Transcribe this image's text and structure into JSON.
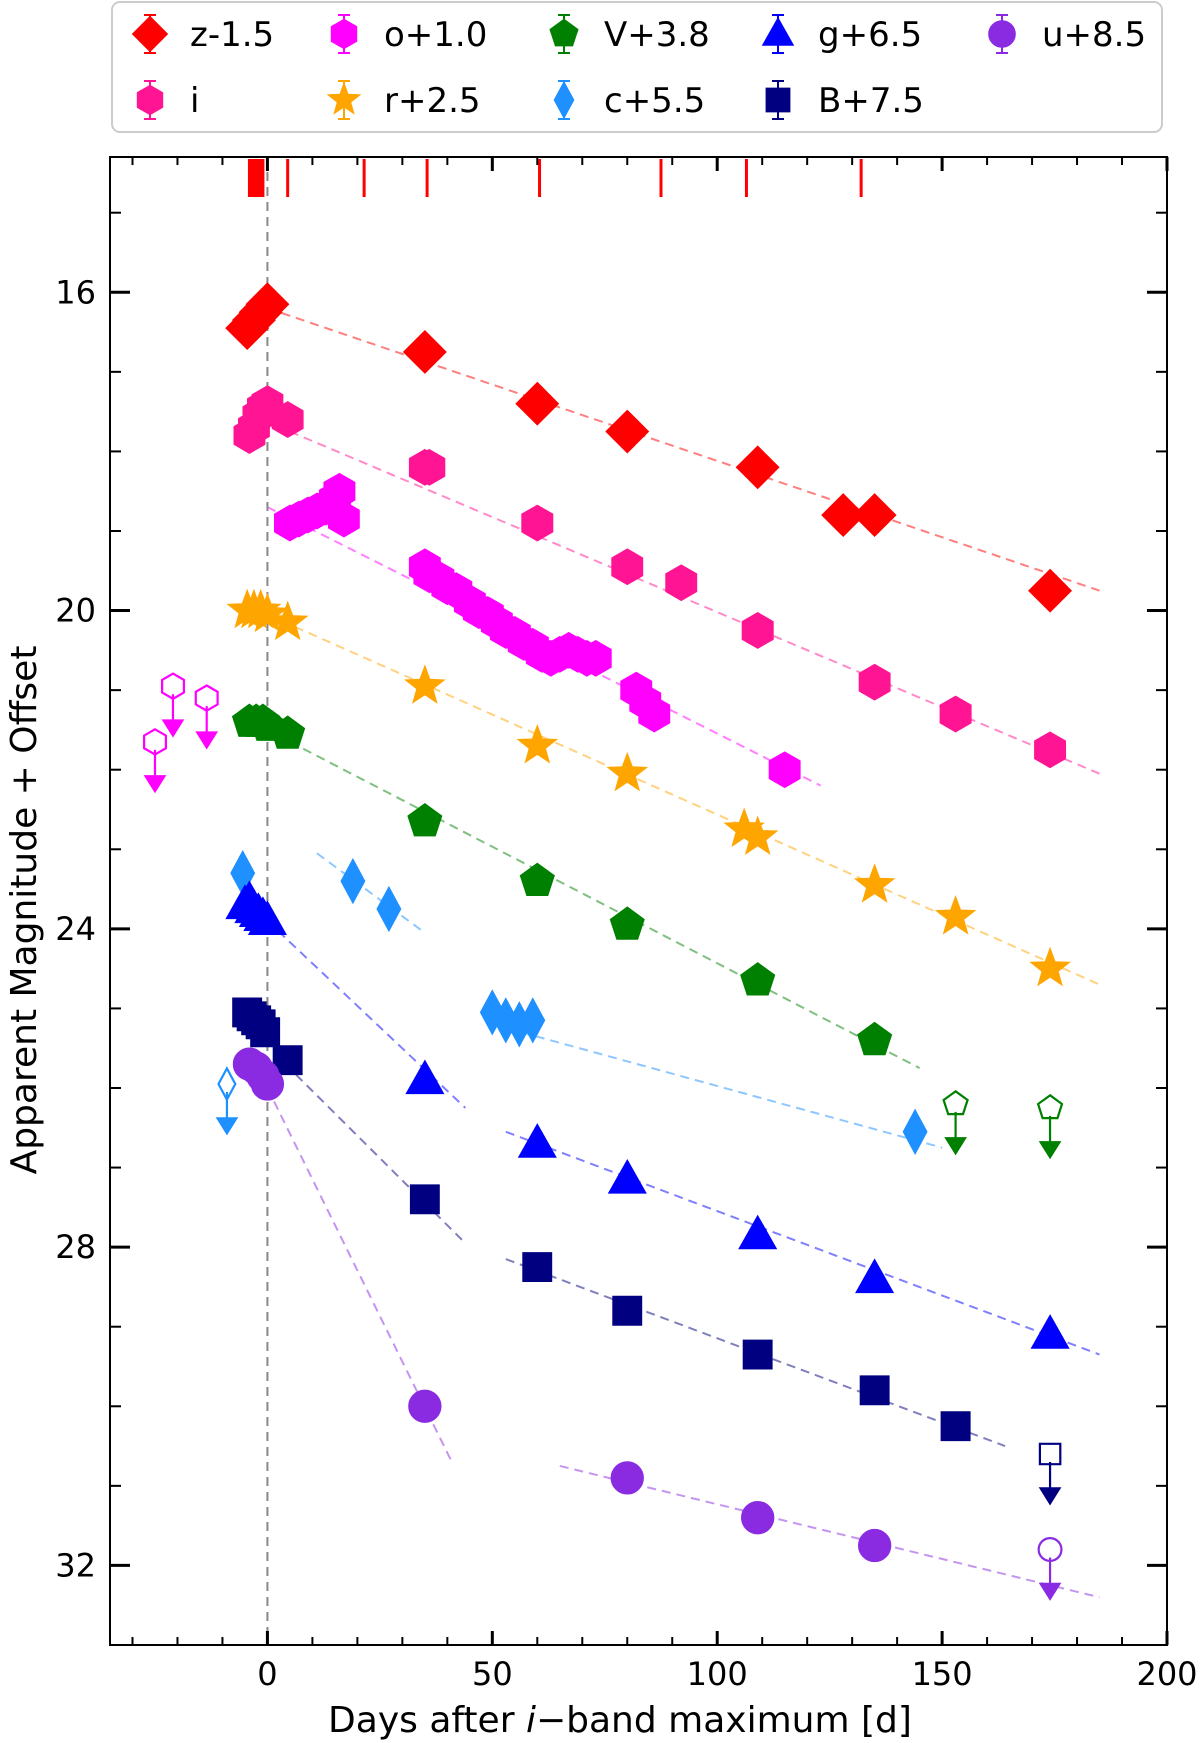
{
  "chart_data": {
    "type": "scatter",
    "title": "",
    "xlabel_parts": [
      "Days after ",
      "i",
      "−band maximum [d]"
    ],
    "ylabel": "Apparent Magnitude + Offset",
    "xlim": [
      -35,
      200
    ],
    "ylim": [
      33.0,
      14.3
    ],
    "y_inverted": true,
    "grid": false,
    "legend_position": "top",
    "xticks": [
      0,
      50,
      100,
      150,
      200
    ],
    "xtick_labels": [
      "0",
      "50",
      "100",
      "150",
      "200"
    ],
    "yticks": [
      16,
      20,
      24,
      28,
      32
    ],
    "ytick_labels": [
      "16",
      "20",
      "24",
      "28",
      "32"
    ],
    "reference_line_x": 0,
    "spectra_epochs": [
      -4,
      -3.5,
      -3,
      -2.5,
      -2,
      -1.5,
      -1,
      4.5,
      21.5,
      35.5,
      60.5,
      87.5,
      106.5,
      132
    ],
    "series": [
      {
        "name": "z-1.5",
        "marker": "diamond",
        "color": "#ff0000",
        "points": [
          [
            -4.5,
            16.45
          ],
          [
            -3,
            16.35
          ],
          [
            -1.5,
            16.25
          ],
          [
            0,
            16.15
          ],
          [
            35,
            16.75
          ],
          [
            60,
            17.4
          ],
          [
            80,
            17.75
          ],
          [
            109,
            18.2
          ],
          [
            128,
            18.8
          ],
          [
            135,
            18.8
          ],
          [
            174,
            19.75
          ]
        ],
        "fit": [
          [
            0,
            16.2
          ],
          [
            185,
            19.75
          ]
        ]
      },
      {
        "name": "i",
        "marker": "hexagon",
        "color": "#ff1493",
        "points": [
          [
            -4,
            17.8
          ],
          [
            -3,
            17.7
          ],
          [
            -2,
            17.55
          ],
          [
            -1,
            17.45
          ],
          [
            0,
            17.4
          ],
          [
            4.5,
            17.6
          ],
          [
            35,
            18.2
          ],
          [
            36,
            18.2
          ],
          [
            60,
            18.9
          ],
          [
            80,
            19.45
          ],
          [
            92,
            19.65
          ],
          [
            109,
            20.25
          ],
          [
            135,
            20.9
          ],
          [
            153,
            21.3
          ],
          [
            174,
            21.75
          ]
        ],
        "fit": [
          [
            5,
            17.75
          ],
          [
            185,
            22.05
          ]
        ]
      },
      {
        "name": "o+1.0",
        "marker": "hexagon",
        "color": "#ff00ff",
        "points": [
          [
            5,
            18.9
          ],
          [
            7,
            18.85
          ],
          [
            9,
            18.8
          ],
          [
            11,
            18.75
          ],
          [
            13,
            18.7
          ],
          [
            15,
            18.6
          ],
          [
            16,
            18.5
          ],
          [
            17,
            18.85
          ],
          [
            35,
            19.45
          ],
          [
            36,
            19.55
          ],
          [
            38,
            19.6
          ],
          [
            40,
            19.7
          ],
          [
            42,
            19.75
          ],
          [
            45,
            19.9
          ],
          [
            47,
            20.0
          ],
          [
            49,
            20.05
          ],
          [
            51,
            20.15
          ],
          [
            53,
            20.25
          ],
          [
            55,
            20.3
          ],
          [
            57,
            20.4
          ],
          [
            59,
            20.45
          ],
          [
            61,
            20.55
          ],
          [
            63,
            20.6
          ],
          [
            65,
            20.55
          ],
          [
            67,
            20.5
          ],
          [
            69,
            20.55
          ],
          [
            71,
            20.6
          ],
          [
            73,
            20.6
          ],
          [
            82,
            21.0
          ],
          [
            84,
            21.15
          ],
          [
            86,
            21.3
          ],
          [
            115,
            22.0
          ]
        ],
        "fit": [
          [
            0,
            18.7
          ],
          [
            123,
            22.2
          ]
        ]
      },
      {
        "name": "r+2.5",
        "marker": "star",
        "color": "#ffa500",
        "points": [
          [
            -4.5,
            20.0
          ],
          [
            -3,
            20.0
          ],
          [
            -1.5,
            20.0
          ],
          [
            0,
            20.05
          ],
          [
            4.5,
            20.15
          ],
          [
            35,
            20.95
          ],
          [
            60,
            21.7
          ],
          [
            80,
            22.05
          ],
          [
            106,
            22.75
          ],
          [
            109,
            22.85
          ],
          [
            135,
            23.45
          ],
          [
            153,
            23.85
          ],
          [
            174,
            24.5
          ]
        ],
        "fit": [
          [
            0,
            20.05
          ],
          [
            185,
            24.7
          ]
        ]
      },
      {
        "name": "V+3.8",
        "marker": "pentagon",
        "color": "#008000",
        "points": [
          [
            -4,
            21.4
          ],
          [
            -2.5,
            21.4
          ],
          [
            -1,
            21.4
          ],
          [
            0,
            21.45
          ],
          [
            4.5,
            21.55
          ],
          [
            35,
            22.65
          ],
          [
            60,
            23.4
          ],
          [
            80,
            23.95
          ],
          [
            109,
            24.65
          ],
          [
            135,
            25.4
          ]
        ],
        "fit": [
          [
            5,
            21.65
          ],
          [
            145,
            25.75
          ]
        ]
      },
      {
        "name": "c+5.5",
        "marker": "thin_diamond",
        "color": "#1e90ff",
        "points": [
          [
            -5.5,
            23.3
          ],
          [
            19,
            23.4
          ],
          [
            27,
            23.75
          ],
          [
            50,
            25.05
          ],
          [
            53,
            25.15
          ],
          [
            56,
            25.2
          ],
          [
            59,
            25.15
          ],
          [
            144,
            26.55
          ]
        ],
        "fit_segments": [
          [
            [
              11,
              23.05
            ],
            [
              35,
              24.05
            ]
          ],
          [
            [
              50,
              25.2
            ],
            [
              150,
              26.75
            ]
          ]
        ]
      },
      {
        "name": "g+6.5",
        "marker": "triangle",
        "color": "#0000ff",
        "points": [
          [
            -5,
            23.7
          ],
          [
            -4,
            23.65
          ],
          [
            -3,
            23.75
          ],
          [
            -2,
            23.8
          ],
          [
            -1,
            23.85
          ],
          [
            0,
            23.9
          ],
          [
            35,
            25.9
          ],
          [
            60,
            26.7
          ],
          [
            80,
            27.15
          ],
          [
            109,
            27.85
          ],
          [
            135,
            28.4
          ],
          [
            174,
            29.1
          ]
        ],
        "fit_segments": [
          [
            [
              0,
              23.9
            ],
            [
              44,
              26.25
            ]
          ],
          [
            [
              53,
              26.55
            ],
            [
              185,
              29.35
            ]
          ]
        ]
      },
      {
        "name": "B+7.5",
        "marker": "square",
        "color": "#000080",
        "points": [
          [
            -4.5,
            25.05
          ],
          [
            -3.5,
            25.1
          ],
          [
            -2.5,
            25.15
          ],
          [
            -1.5,
            25.2
          ],
          [
            -0.5,
            25.3
          ],
          [
            4.5,
            25.65
          ],
          [
            35,
            27.4
          ],
          [
            60,
            28.25
          ],
          [
            80,
            28.8
          ],
          [
            109,
            29.35
          ],
          [
            135,
            29.8
          ],
          [
            153,
            30.25
          ]
        ],
        "fit_segments": [
          [
            [
              4,
              25.7
            ],
            [
              44,
              27.95
            ]
          ],
          [
            [
              53,
              28.15
            ],
            [
              164,
              30.5
            ]
          ]
        ]
      },
      {
        "name": "u+8.5",
        "marker": "circle",
        "color": "#8a2be2",
        "points": [
          [
            -4,
            25.7
          ],
          [
            -2.5,
            25.75
          ],
          [
            -1,
            25.85
          ],
          [
            0,
            25.95
          ],
          [
            35,
            30.0
          ],
          [
            80,
            30.9
          ],
          [
            109,
            31.4
          ],
          [
            135,
            31.75
          ]
        ],
        "fit_segments": [
          [
            [
              0,
              26.0
            ],
            [
              41,
              30.7
            ]
          ],
          [
            [
              65,
              30.75
            ],
            [
              185,
              32.4
            ]
          ]
        ]
      }
    ],
    "upper_limits": [
      {
        "series": "o+1.0",
        "marker": "hexagon",
        "color": "#ff00ff",
        "points": [
          [
            -25,
            21.65
          ],
          [
            -21,
            20.95
          ],
          [
            -13.5,
            21.1
          ]
        ]
      },
      {
        "series": "c+5.5",
        "marker": "thin_diamond",
        "color": "#1e90ff",
        "points": [
          [
            -9,
            25.95
          ]
        ]
      },
      {
        "series": "V+3.8",
        "marker": "pentagon",
        "color": "#008000",
        "points": [
          [
            153,
            26.2
          ],
          [
            174,
            26.25
          ]
        ]
      },
      {
        "series": "B+7.5",
        "marker": "square",
        "color": "#000080",
        "points": [
          [
            174,
            30.6
          ]
        ]
      },
      {
        "series": "u+8.5",
        "marker": "circle",
        "color": "#8a2be2",
        "points": [
          [
            174,
            31.8
          ]
        ]
      }
    ],
    "legend": {
      "entries": [
        "z-1.5",
        "o+1.0",
        "V+3.8",
        "g+6.5",
        "u+8.5",
        "i",
        "r+2.5",
        "c+5.5",
        "B+7.5"
      ]
    }
  }
}
